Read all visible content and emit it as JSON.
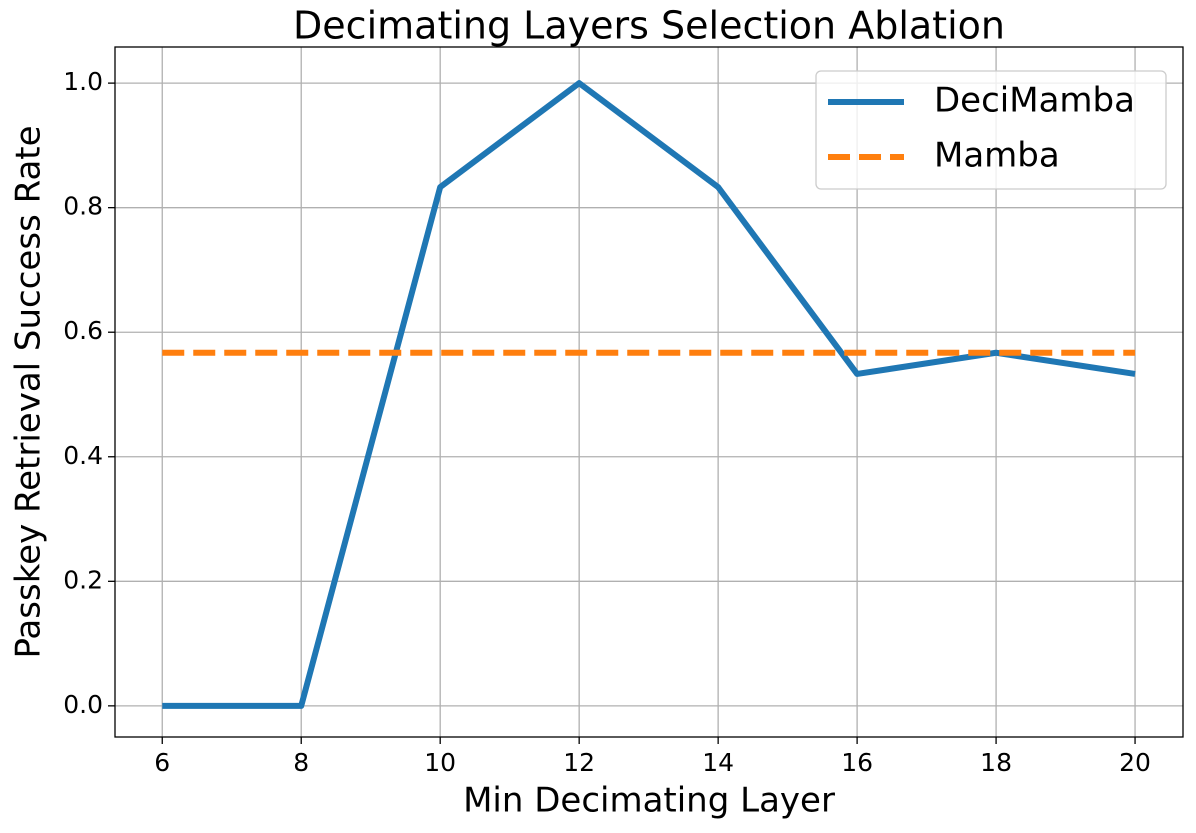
{
  "chart_data": {
    "type": "line",
    "title": "Decimating Layers Selection Ablation",
    "x_label": "Min Decimating Layer",
    "y_label": "Passkey Retrieval Success Rate",
    "x": [
      6,
      8,
      10,
      12,
      14,
      16,
      18,
      20
    ],
    "series": [
      {
        "name": "DeciMamba",
        "color": "#1f77b4",
        "linestyle": "solid",
        "values": [
          0,
          0,
          0.833,
          1.0,
          0.833,
          0.533,
          0.567,
          0.533
        ]
      },
      {
        "name": "Mamba",
        "color": "#ff7f0e",
        "linestyle": "dashed",
        "values": [
          0.567,
          0.567,
          0.567,
          0.567,
          0.567,
          0.567,
          0.567,
          0.567
        ]
      }
    ],
    "xlim": [
      5.32,
      20.69
    ],
    "ylim": [
      -0.05,
      1.058
    ],
    "xticks": [
      6,
      8,
      10,
      12,
      14,
      16,
      18,
      20
    ],
    "yticks": [
      {
        "value": 0,
        "label": "0.0"
      },
      0.2,
      0.4,
      0.6,
      0.8,
      {
        "value": 1,
        "label": "1.0"
      }
    ],
    "grid": true,
    "legend": "upper right"
  }
}
